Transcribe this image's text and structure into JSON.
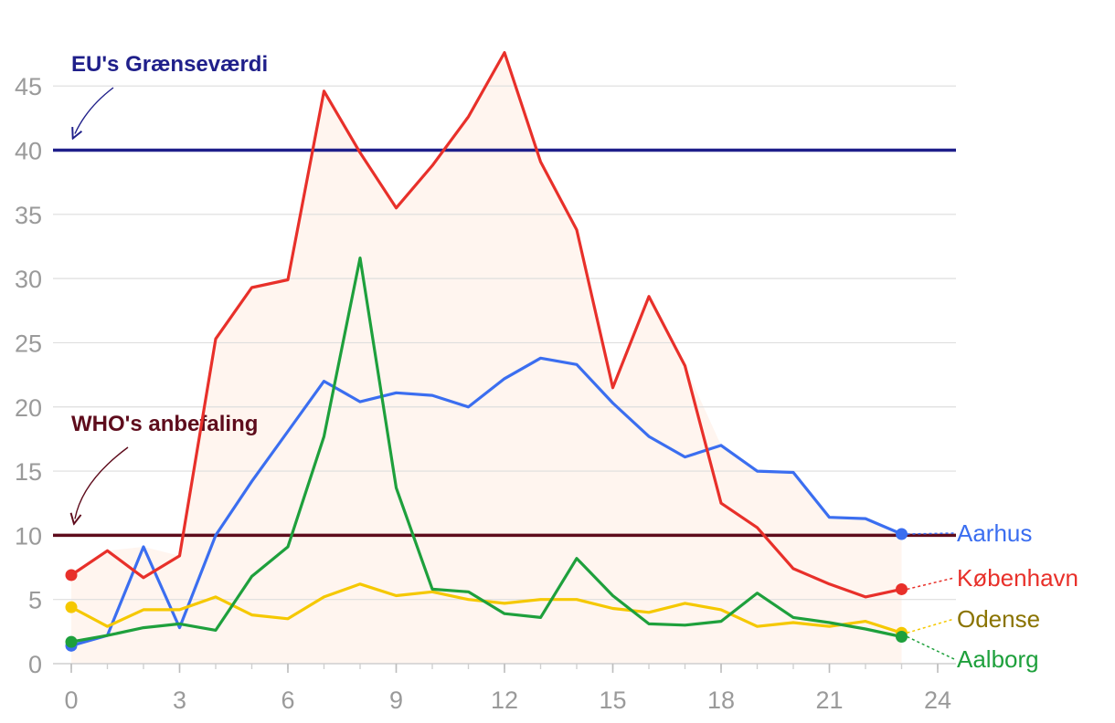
{
  "chart_data": {
    "type": "line",
    "x": [
      0,
      1,
      2,
      3,
      4,
      5,
      6,
      7,
      8,
      9,
      10,
      11,
      12,
      13,
      14,
      15,
      16,
      17,
      18,
      19,
      20,
      21,
      22,
      23
    ],
    "xticks": [
      0,
      3,
      6,
      9,
      12,
      15,
      18,
      21,
      24
    ],
    "yticks": [
      0,
      5,
      10,
      15,
      20,
      25,
      30,
      35,
      40,
      45
    ],
    "xlim": [
      0,
      24
    ],
    "ylim": [
      0,
      48
    ],
    "grid": true,
    "series": [
      {
        "name": "Aarhus",
        "color": "#3b6ef0",
        "values": [
          1.4,
          2.2,
          9.1,
          2.8,
          10.0,
          14.2,
          18.1,
          22.0,
          20.4,
          21.1,
          20.9,
          20.0,
          22.2,
          23.8,
          23.3,
          20.3,
          17.7,
          16.1,
          17.0,
          15.0,
          14.9,
          11.4,
          11.3,
          10.1
        ]
      },
      {
        "name": "København",
        "color": "#e8302a",
        "values": [
          6.9,
          8.8,
          6.7,
          8.4,
          25.3,
          29.3,
          29.9,
          44.6,
          39.8,
          35.5,
          38.8,
          42.6,
          47.6,
          39.1,
          33.8,
          21.5,
          28.6,
          23.2,
          12.5,
          10.6,
          7.4,
          6.2,
          5.2,
          5.8
        ]
      },
      {
        "name": "Odense",
        "color": "#f5c800",
        "labelColor": "#8a7300",
        "values": [
          4.4,
          2.9,
          4.2,
          4.2,
          5.2,
          3.8,
          3.5,
          5.2,
          6.2,
          5.3,
          5.6,
          5.0,
          4.7,
          5.0,
          5.0,
          4.3,
          4.0,
          4.7,
          4.2,
          2.9,
          3.2,
          2.9,
          3.3,
          2.4
        ]
      },
      {
        "name": "Aalborg",
        "color": "#1ea03c",
        "values": [
          1.7,
          2.2,
          2.8,
          3.1,
          2.6,
          6.8,
          9.1,
          17.7,
          31.6,
          13.7,
          5.8,
          5.6,
          3.9,
          3.6,
          8.2,
          5.3,
          3.1,
          3.0,
          3.3,
          5.5,
          3.6,
          3.2,
          2.7,
          2.1
        ]
      }
    ],
    "reference_lines": [
      {
        "label": "EU's Grænseværdi",
        "value": 40,
        "color": "#1f1f8a"
      },
      {
        "label": "WHO's anbefaling",
        "value": 10,
        "color": "#5e0c1c"
      }
    ],
    "area_fill_color": "#fff5ef"
  }
}
